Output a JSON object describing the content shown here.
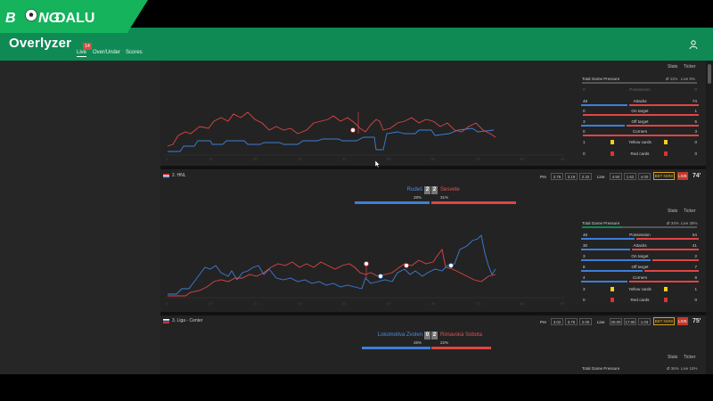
{
  "logo": {
    "brand_b": "B",
    "brand_ng": "NG",
    "brand_dalu": "DALU"
  },
  "header": {
    "title": "Overlyzer"
  },
  "nav": {
    "tabs": [
      {
        "label": "Live",
        "badge": "14"
      },
      {
        "label": "Over/Under"
      },
      {
        "label": "Scores"
      }
    ]
  },
  "panel_tabs": {
    "stats": "Stats",
    "ticker": "Ticker"
  },
  "match1": {
    "pressure_label": "Total Game Pressure",
    "pressure_ratio": "Ø 11%",
    "pressure_live": "Live 5%",
    "possession": {
      "label": "Possession",
      "home": "0",
      "away": "0"
    },
    "rows": [
      {
        "label": "Attacks",
        "home": "48",
        "away": "74"
      },
      {
        "label": "On target",
        "home": "0",
        "away": "1"
      },
      {
        "label": "Off target",
        "home": "3",
        "away": "5"
      },
      {
        "label": "Corners",
        "home": "0",
        "away": "3"
      },
      {
        "label": "Yellow cards",
        "home": "1",
        "away": "0"
      },
      {
        "label": "Red cards",
        "home": "0",
        "away": "0"
      }
    ],
    "x_ticks": [
      "0",
      "10",
      "20",
      "30",
      "40",
      "50",
      "60",
      "70",
      "80",
      "90"
    ]
  },
  "match2": {
    "league": "2. HNL",
    "home_team": "Rudeš",
    "away_team": "Sesvete",
    "home_score": "2",
    "away_score": "2",
    "home_pct": "28%",
    "away_pct": "31%",
    "minute": "74'",
    "odds_pre_label": "Pre",
    "odds_pre": [
      "2.75",
      "3.19",
      "2.32"
    ],
    "odds_live_label": "Line",
    "odds_live": [
      "4.50",
      "1.62",
      "4.00"
    ],
    "bet_now": "BET NOW",
    "live": "LIVE",
    "pressure_label": "Total Game Pressure",
    "pressure_ratio": "Ø 34%",
    "pressure_live": "Live 38%",
    "rows": [
      {
        "label": "Possession",
        "home": "46",
        "away": "54"
      },
      {
        "label": "Attacks",
        "home": "30",
        "away": "41"
      },
      {
        "label": "On target",
        "home": "3",
        "away": "2"
      },
      {
        "label": "Off target",
        "home": "8",
        "away": "7"
      },
      {
        "label": "Corners",
        "home": "4",
        "away": "6"
      },
      {
        "label": "Yellow cards",
        "home": "3",
        "away": "1"
      },
      {
        "label": "Red cards",
        "home": "0",
        "away": "0"
      }
    ],
    "x_ticks": [
      "0",
      "10",
      "20",
      "30",
      "40",
      "50",
      "60",
      "70",
      "80",
      "90"
    ]
  },
  "match3": {
    "league": "3. Liga - Center",
    "home_team": "Lokomotiva Zvolen",
    "away_team": "Rimavská Sobota",
    "home_score": "0",
    "away_score": "2",
    "home_pct": "26%",
    "away_pct": "22%",
    "minute": "75'",
    "odds_pre_label": "Pre",
    "odds_pre": [
      "3.02",
      "3.76",
      "2.05"
    ],
    "odds_live_label": "Line",
    "odds_live": [
      "29.00",
      "17.00",
      "1.03"
    ],
    "bet_now": "BET NOW",
    "live": "LIVE",
    "pressure_label": "Total Game Pressure",
    "pressure_ratio": "Ø 36%",
    "pressure_live": "Live 15%"
  },
  "colors": {
    "header": "#0f8a55",
    "home": "#3c7fd6",
    "away": "#e04545",
    "accent": "#e7b52e"
  }
}
